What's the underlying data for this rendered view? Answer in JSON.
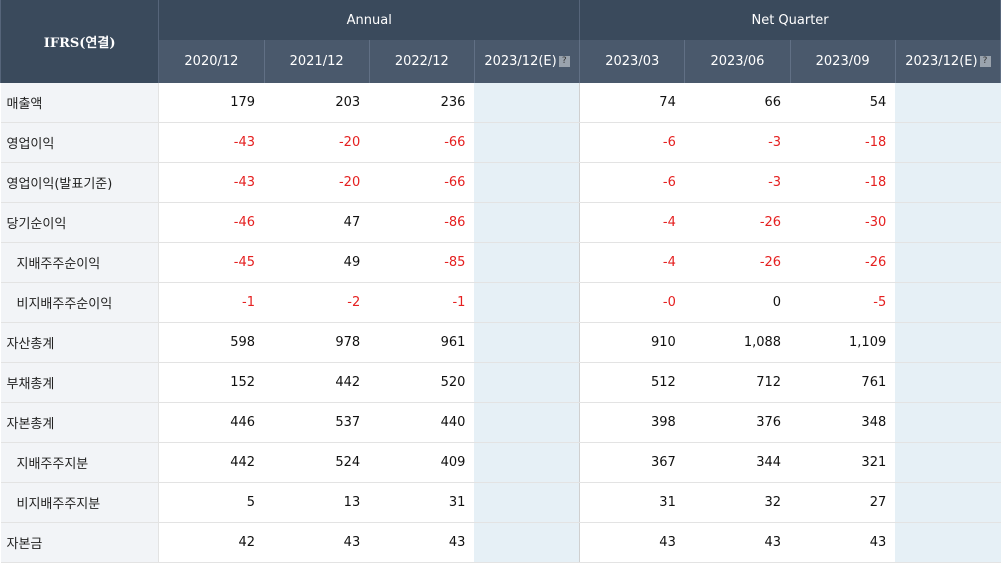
{
  "table": {
    "corner": "IFRS(연결)",
    "group_annual": "Annual",
    "group_quarter": "Net Quarter",
    "annual_periods": [
      "2020/12",
      "2021/12",
      "2022/12",
      "2023/12(E)"
    ],
    "quarter_periods": [
      "2023/03",
      "2023/06",
      "2023/09",
      "2023/12(E)"
    ],
    "help_glyph": "?",
    "rows": [
      {
        "label": "매출액",
        "sub": false,
        "annual": [
          "179",
          "203",
          "236",
          ""
        ],
        "quarter": [
          "74",
          "66",
          "54",
          ""
        ]
      },
      {
        "label": "영업이익",
        "sub": false,
        "annual": [
          "-43",
          "-20",
          "-66",
          ""
        ],
        "quarter": [
          "-6",
          "-3",
          "-18",
          ""
        ]
      },
      {
        "label": "영업이익(발표기준)",
        "sub": false,
        "annual": [
          "-43",
          "-20",
          "-66",
          ""
        ],
        "quarter": [
          "-6",
          "-3",
          "-18",
          ""
        ]
      },
      {
        "label": "당기순이익",
        "sub": false,
        "annual": [
          "-46",
          "47",
          "-86",
          ""
        ],
        "quarter": [
          "-4",
          "-26",
          "-30",
          ""
        ]
      },
      {
        "label": "지배주주순이익",
        "sub": true,
        "annual": [
          "-45",
          "49",
          "-85",
          ""
        ],
        "quarter": [
          "-4",
          "-26",
          "-26",
          ""
        ]
      },
      {
        "label": "비지배주주순이익",
        "sub": true,
        "annual": [
          "-1",
          "-2",
          "-1",
          ""
        ],
        "quarter": [
          "-0",
          "0",
          "-5",
          ""
        ]
      },
      {
        "label": "자산총계",
        "sub": false,
        "annual": [
          "598",
          "978",
          "961",
          ""
        ],
        "quarter": [
          "910",
          "1,088",
          "1,109",
          ""
        ]
      },
      {
        "label": "부채총계",
        "sub": false,
        "annual": [
          "152",
          "442",
          "520",
          ""
        ],
        "quarter": [
          "512",
          "712",
          "761",
          ""
        ]
      },
      {
        "label": "자본총계",
        "sub": false,
        "annual": [
          "446",
          "537",
          "440",
          ""
        ],
        "quarter": [
          "398",
          "376",
          "348",
          ""
        ]
      },
      {
        "label": "지배주주지분",
        "sub": true,
        "annual": [
          "442",
          "524",
          "409",
          ""
        ],
        "quarter": [
          "367",
          "344",
          "321",
          ""
        ]
      },
      {
        "label": "비지배주주지분",
        "sub": true,
        "annual": [
          "5",
          "13",
          "31",
          ""
        ],
        "quarter": [
          "31",
          "32",
          "27",
          ""
        ]
      },
      {
        "label": "자본금",
        "sub": false,
        "annual": [
          "42",
          "43",
          "43",
          ""
        ],
        "quarter": [
          "43",
          "43",
          "43",
          ""
        ]
      }
    ]
  }
}
